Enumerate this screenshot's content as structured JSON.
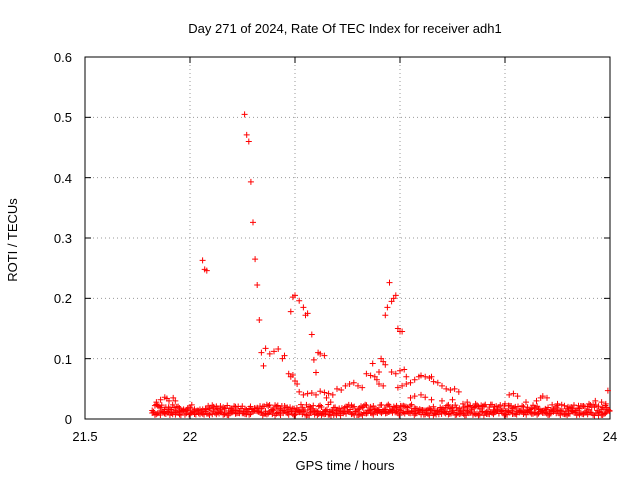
{
  "chart_data": {
    "type": "scatter",
    "title": "Day 271 of 2024, Rate Of TEC Index for receiver adh1",
    "xlabel": "GPS time / hours",
    "ylabel": "ROTI / TECUs",
    "xlim": [
      21.5,
      24
    ],
    "ylim": [
      0,
      0.6
    ],
    "x_ticks": [
      "21.5",
      "22",
      "22.5",
      "23",
      "23.5",
      "24"
    ],
    "y_ticks": [
      "0",
      "0.1",
      "0.2",
      "0.3",
      "0.4",
      "0.5",
      "0.6"
    ],
    "grid": true,
    "marker": "+",
    "marker_color": "#ff0000",
    "series": [
      {
        "name": "ROTI",
        "points": [
          [
            22.06,
            0.263
          ],
          [
            22.07,
            0.248
          ],
          [
            22.08,
            0.246
          ],
          [
            22.26,
            0.505
          ],
          [
            22.27,
            0.471
          ],
          [
            22.28,
            0.46
          ],
          [
            22.29,
            0.393
          ],
          [
            22.3,
            0.326
          ],
          [
            22.31,
            0.265
          ],
          [
            22.32,
            0.222
          ],
          [
            22.33,
            0.164
          ],
          [
            22.34,
            0.11
          ],
          [
            22.35,
            0.088
          ],
          [
            22.36,
            0.117
          ],
          [
            22.38,
            0.108
          ],
          [
            22.4,
            0.112
          ],
          [
            22.42,
            0.116
          ],
          [
            22.44,
            0.1
          ],
          [
            22.45,
            0.105
          ],
          [
            22.47,
            0.075
          ],
          [
            22.48,
            0.07
          ],
          [
            22.49,
            0.073
          ],
          [
            22.5,
            0.063
          ],
          [
            22.51,
            0.058
          ],
          [
            22.48,
            0.178
          ],
          [
            22.49,
            0.202
          ],
          [
            22.5,
            0.205
          ],
          [
            22.52,
            0.196
          ],
          [
            22.54,
            0.185
          ],
          [
            22.55,
            0.172
          ],
          [
            22.56,
            0.175
          ],
          [
            22.58,
            0.14
          ],
          [
            22.59,
            0.098
          ],
          [
            22.6,
            0.077
          ],
          [
            22.61,
            0.11
          ],
          [
            22.62,
            0.108
          ],
          [
            22.64,
            0.105
          ],
          [
            22.52,
            0.045
          ],
          [
            22.54,
            0.04
          ],
          [
            22.56,
            0.042
          ],
          [
            22.58,
            0.043
          ],
          [
            22.6,
            0.04
          ],
          [
            22.62,
            0.046
          ],
          [
            22.64,
            0.044
          ],
          [
            22.66,
            0.042
          ],
          [
            22.68,
            0.04
          ],
          [
            22.65,
            0.035
          ],
          [
            22.67,
            0.028
          ],
          [
            22.7,
            0.05
          ],
          [
            22.72,
            0.048
          ],
          [
            22.74,
            0.055
          ],
          [
            22.76,
            0.058
          ],
          [
            22.78,
            0.06
          ],
          [
            22.8,
            0.055
          ],
          [
            22.82,
            0.052
          ],
          [
            22.84,
            0.075
          ],
          [
            22.86,
            0.072
          ],
          [
            22.87,
            0.092
          ],
          [
            22.88,
            0.07
          ],
          [
            22.9,
            0.078
          ],
          [
            22.91,
            0.1
          ],
          [
            22.92,
            0.095
          ],
          [
            22.93,
            0.09
          ],
          [
            22.89,
            0.065
          ],
          [
            22.9,
            0.058
          ],
          [
            22.92,
            0.055
          ],
          [
            22.93,
            0.172
          ],
          [
            22.94,
            0.185
          ],
          [
            22.95,
            0.226
          ],
          [
            22.96,
            0.195
          ],
          [
            22.97,
            0.2
          ],
          [
            22.98,
            0.205
          ],
          [
            22.99,
            0.15
          ],
          [
            23.0,
            0.145
          ],
          [
            23.01,
            0.145
          ],
          [
            22.96,
            0.078
          ],
          [
            22.98,
            0.075
          ],
          [
            23.0,
            0.08
          ],
          [
            23.02,
            0.082
          ],
          [
            23.03,
            0.07
          ],
          [
            22.99,
            0.052
          ],
          [
            23.01,
            0.055
          ],
          [
            23.03,
            0.058
          ],
          [
            23.05,
            0.06
          ],
          [
            23.07,
            0.065
          ],
          [
            23.09,
            0.07
          ],
          [
            23.1,
            0.072
          ],
          [
            23.12,
            0.07
          ],
          [
            23.14,
            0.068
          ],
          [
            23.15,
            0.07
          ],
          [
            23.16,
            0.062
          ],
          [
            23.18,
            0.06
          ],
          [
            23.2,
            0.055
          ],
          [
            23.22,
            0.05
          ],
          [
            23.24,
            0.048
          ],
          [
            23.26,
            0.05
          ],
          [
            23.28,
            0.045
          ],
          [
            23.05,
            0.035
          ],
          [
            23.07,
            0.038
          ],
          [
            23.1,
            0.04
          ],
          [
            23.12,
            0.036
          ],
          [
            23.15,
            0.032
          ],
          [
            23.2,
            0.03
          ],
          [
            23.25,
            0.032
          ],
          [
            23.3,
            0.025
          ],
          [
            23.32,
            0.028
          ],
          [
            23.36,
            0.025
          ],
          [
            23.4,
            0.022
          ],
          [
            23.45,
            0.02
          ],
          [
            23.5,
            0.025
          ],
          [
            23.52,
            0.04
          ],
          [
            23.54,
            0.042
          ],
          [
            23.56,
            0.038
          ],
          [
            23.6,
            0.028
          ],
          [
            23.65,
            0.03
          ],
          [
            23.67,
            0.035
          ],
          [
            23.68,
            0.038
          ],
          [
            23.7,
            0.035
          ],
          [
            23.75,
            0.025
          ],
          [
            23.8,
            0.02
          ],
          [
            23.85,
            0.022
          ],
          [
            23.9,
            0.025
          ],
          [
            23.93,
            0.03
          ],
          [
            23.96,
            0.028
          ],
          [
            23.98,
            0.025
          ],
          [
            23.99,
            0.047
          ],
          [
            21.84,
            0.028
          ],
          [
            21.86,
            0.032
          ],
          [
            21.88,
            0.036
          ],
          [
            21.89,
            0.034
          ],
          [
            21.9,
            0.03
          ],
          [
            21.92,
            0.035
          ],
          [
            21.93,
            0.03
          ],
          [
            21.95,
            0.018
          ]
        ],
        "baseline": {
          "x_range": [
            21.82,
            24.0
          ],
          "bands": [
            {
              "mean": 0.01,
              "spread": 0.004
            },
            {
              "mean": 0.018,
              "spread": 0.006
            }
          ]
        }
      }
    ]
  }
}
